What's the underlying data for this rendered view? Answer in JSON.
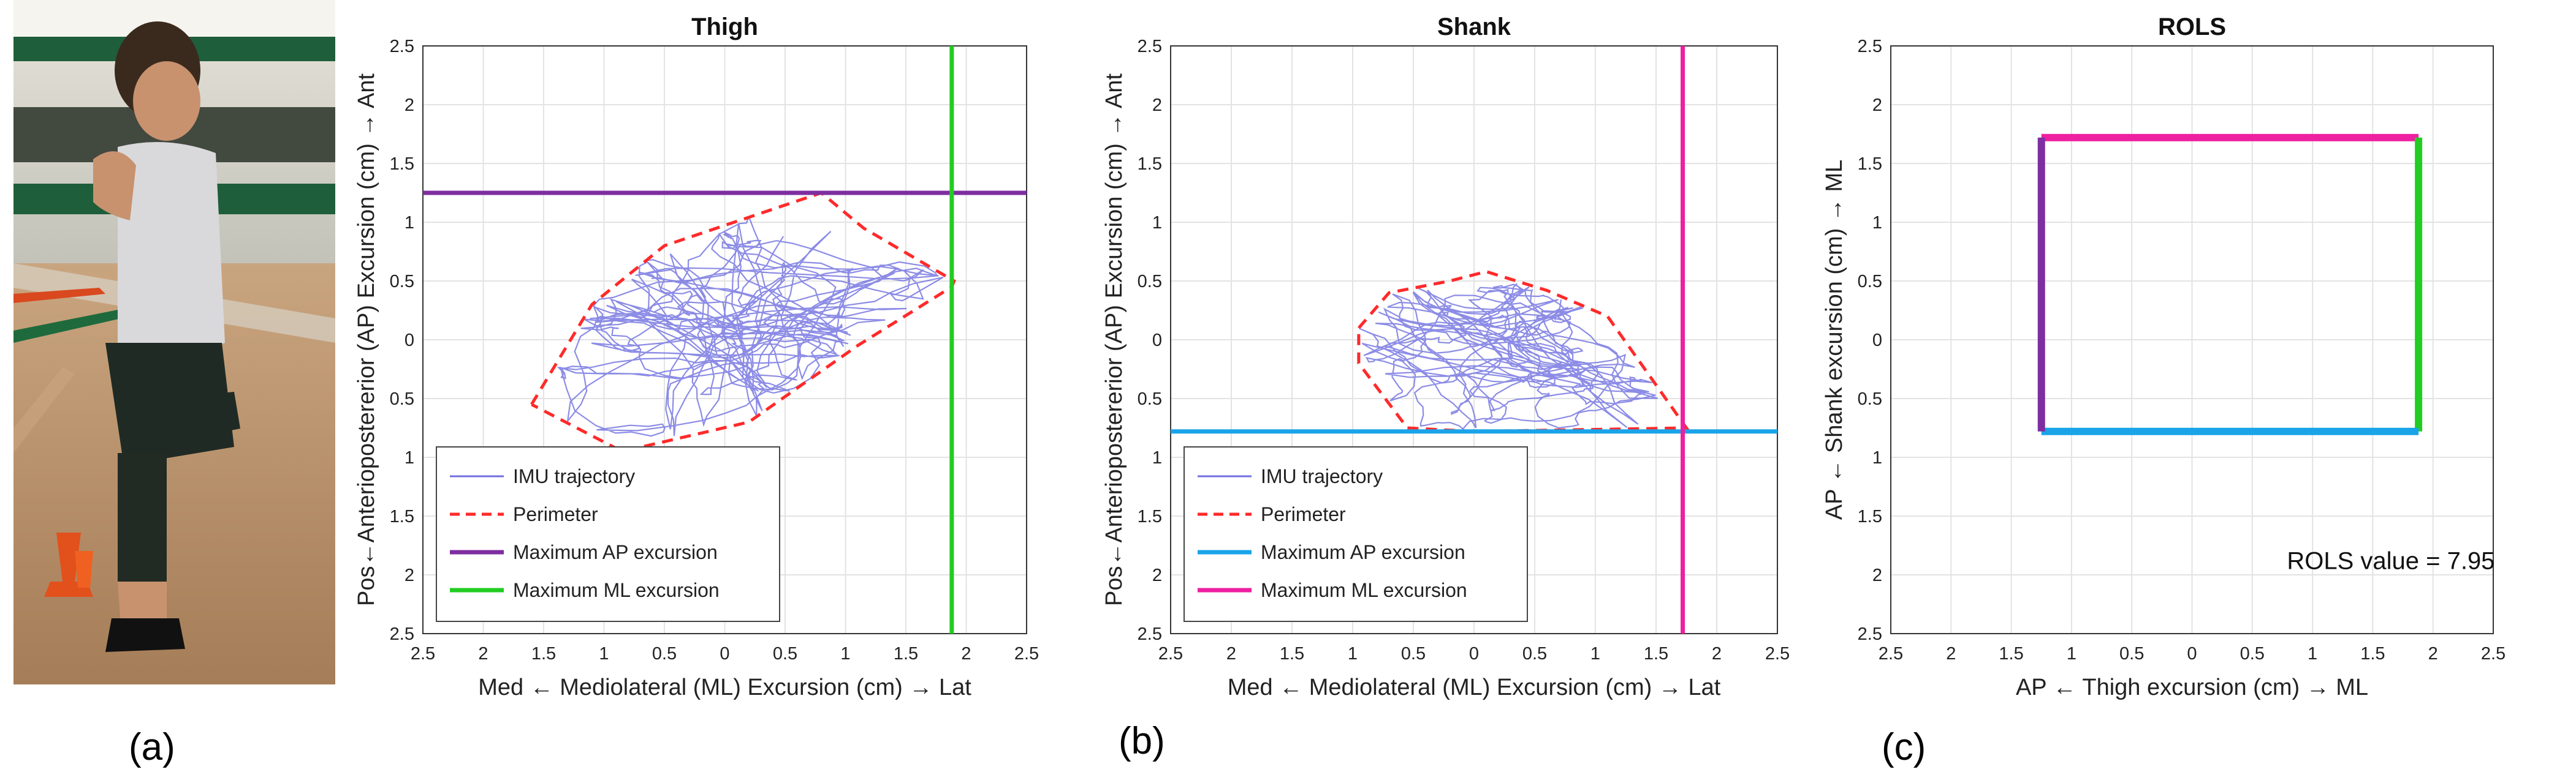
{
  "panel_labels": [
    "(a)",
    "(b)",
    "(c)"
  ],
  "photo": {
    "description_icon": "athlete-photo-icon"
  },
  "colors": {
    "trajectory": "#6f6fe0",
    "perimeter": "#ff2a2a",
    "ap_thigh": "#7e2ea0",
    "ml_thigh": "#22cc22",
    "ap_shank": "#1aa3e8",
    "ml_shank": "#ee1fa0",
    "grid": "#e3e3e3",
    "axis": "#333333"
  },
  "chart_data": [
    {
      "type": "line",
      "title": "Thigh",
      "xlabel": "Med ← Mediolateral (ML) Excursion (cm) → Lat",
      "ylabel": "Pos←Anteriopostererior (AP) Excursion (cm) → Ant",
      "xlim": [
        -2.5,
        2.5
      ],
      "ylim": [
        -2.5,
        2.5
      ],
      "x_reversed_labels": true,
      "xticks": [
        "2.5",
        "2",
        "1.5",
        "1",
        "0.5",
        "0",
        "0.5",
        "1",
        "1.5",
        "2",
        "2.5"
      ],
      "yticks": [
        "2.5",
        "2",
        "1.5",
        "1",
        "0.5",
        "0",
        "0.5",
        "1",
        "1.5",
        "2",
        "2.5"
      ],
      "grid": true,
      "legend_position": "bottom-left",
      "legend": [
        "IMU trajectory",
        "Perimeter",
        "Maximum AP excursion",
        "Maximum ML excursion"
      ],
      "perimeter": [
        [
          -1.6,
          -0.55
        ],
        [
          -1.1,
          0.3
        ],
        [
          -0.5,
          0.8
        ],
        [
          0.8,
          1.25
        ],
        [
          1.15,
          0.95
        ],
        [
          1.9,
          0.5
        ],
        [
          1.88,
          0.45
        ],
        [
          1.1,
          -0.05
        ],
        [
          0.2,
          -0.7
        ],
        [
          -0.85,
          -0.95
        ],
        [
          -1.6,
          -0.55
        ]
      ],
      "max_ap_y": 1.25,
      "max_ml_x": 1.88
    },
    {
      "type": "line",
      "title": "Shank",
      "xlabel": "Med ← Mediolateral (ML) Excursion (cm) → Lat",
      "ylabel": "Pos←Anteriopostererior (AP) Excursion (cm) → Ant",
      "xlim": [
        -2.5,
        2.5
      ],
      "ylim": [
        -2.5,
        2.5
      ],
      "xticks": [
        "2.5",
        "2",
        "1.5",
        "1",
        "0.5",
        "0",
        "0.5",
        "1",
        "1.5",
        "2",
        "2.5"
      ],
      "yticks": [
        "2.5",
        "2",
        "1.5",
        "1",
        "0.5",
        "0",
        "0.5",
        "1",
        "1.5",
        "2",
        "2.5"
      ],
      "grid": true,
      "legend_position": "bottom-left",
      "legend": [
        "IMU trajectory",
        "Perimeter",
        "Maximum AP excursion",
        "Maximum ML excursion"
      ],
      "perimeter": [
        [
          -0.95,
          0.1
        ],
        [
          -0.7,
          0.4
        ],
        [
          -0.2,
          0.5
        ],
        [
          0.1,
          0.58
        ],
        [
          0.6,
          0.42
        ],
        [
          1.1,
          0.2
        ],
        [
          1.75,
          -0.75
        ],
        [
          0.0,
          -0.78
        ],
        [
          -0.55,
          -0.75
        ],
        [
          -0.95,
          -0.2
        ],
        [
          -0.95,
          0.1
        ]
      ],
      "max_ap_y": -0.78,
      "max_ml_x": 1.72
    },
    {
      "type": "line",
      "title": "ROLS",
      "xlabel": "AP ← Thigh excursion (cm) → ML",
      "ylabel": "AP ← Shank excursion (cm) → ML",
      "xlim": [
        -2.5,
        2.5
      ],
      "ylim": [
        -2.5,
        2.5
      ],
      "xticks": [
        "2.5",
        "2",
        "1.5",
        "1",
        "0.5",
        "0",
        "0.5",
        "1",
        "1.5",
        "2",
        "2.5"
      ],
      "yticks": [
        "2.5",
        "2",
        "1.5",
        "1",
        "0.5",
        "0",
        "0.5",
        "1",
        "1.5",
        "2",
        "2.5"
      ],
      "grid": true,
      "annotation": "ROLS value = 7.95",
      "rectangle": {
        "left": -1.25,
        "right": 1.88,
        "top": 1.72,
        "bottom": -0.78
      }
    }
  ]
}
